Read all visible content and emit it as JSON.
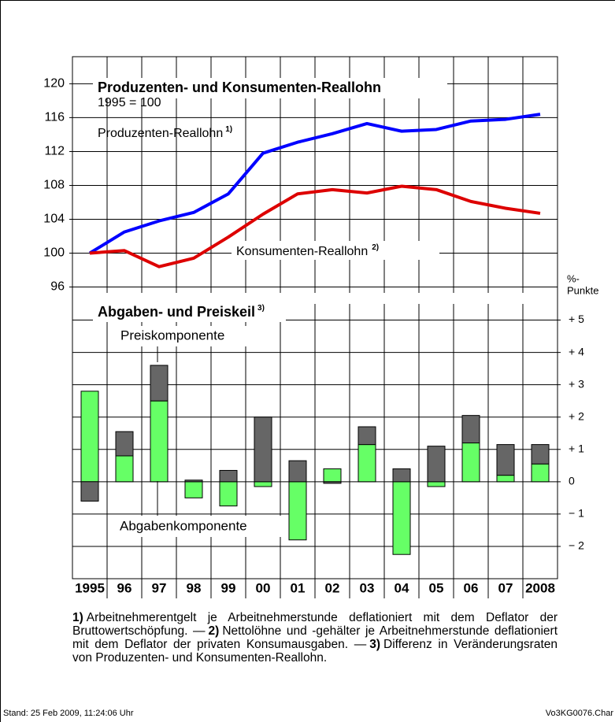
{
  "chart_data": [
    {
      "type": "line",
      "title": "Produzenten- und Konsumenten-Reallohn",
      "subtitle": "1995 = 100",
      "categories": [
        "1995",
        "96",
        "97",
        "98",
        "99",
        "00",
        "01",
        "02",
        "03",
        "04",
        "05",
        "06",
        "07",
        "2008"
      ],
      "series": [
        {
          "name": "Produzenten-Reallohn",
          "note": "1)",
          "color": "#0000ff",
          "values": [
            100,
            102.5,
            103.8,
            104.8,
            107,
            111.8,
            113.1,
            114.1,
            115.3,
            114.4,
            114.6,
            115.6,
            115.8,
            116.4
          ]
        },
        {
          "name": "Konsumenten-Reallohn",
          "note": "2)",
          "color": "#dd0000",
          "values": [
            100,
            100.3,
            98.4,
            99.4,
            101.9,
            104.6,
            107,
            107.5,
            107.1,
            107.9,
            107.5,
            106.1,
            105.3,
            104.7
          ]
        }
      ],
      "ylim": [
        94,
        123.2
      ],
      "yticks": [
        96,
        100,
        104,
        108,
        112,
        116,
        120
      ],
      "grid": true
    },
    {
      "type": "bar",
      "title": "Abgaben- und Preiskeil",
      "title_note": "3)",
      "axis_label": [
        "%-",
        "Punkte"
      ],
      "stacked": true,
      "categories": [
        "1995",
        "96",
        "97",
        "98",
        "99",
        "00",
        "01",
        "02",
        "03",
        "04",
        "05",
        "06",
        "07",
        "2008"
      ],
      "series": [
        {
          "name": "Abgabenkomponente",
          "color": "#66ff66",
          "axis": "y2",
          "values": [
            2.8,
            0.8,
            2.5,
            -0.5,
            -0.75,
            -0.15,
            -1.8,
            0.4,
            1.15,
            -2.25,
            -0.15,
            1.2,
            0.2,
            0.55
          ]
        },
        {
          "name": "Preiskomponente",
          "color": "#666666",
          "axis": "y2",
          "values": [
            -0.6,
            0.75,
            1.1,
            0.05,
            0.35,
            2.0,
            0.65,
            -0.05,
            0.55,
            0.4,
            1.1,
            0.85,
            0.95,
            0.6
          ]
        }
      ],
      "y2lim": [
        -3,
        5.5
      ],
      "y2ticks": [
        {
          "value": 5,
          "label": "+ 5"
        },
        {
          "value": 4,
          "label": "+ 4"
        },
        {
          "value": 3,
          "label": "+ 3"
        },
        {
          "value": 2,
          "label": "+ 2"
        },
        {
          "value": 1,
          "label": "+ 1"
        },
        0,
        {
          "value": -1,
          "label": "− 1"
        },
        {
          "value": -2,
          "label": "− 2"
        }
      ],
      "grid": true
    }
  ],
  "footnotes": [
    {
      "marker": "1)",
      "text": "Arbeitnehmerentgelt je Arbeitnehmerstunde deflationiert mit dem Deflator der Bruttowertschöpfung. —"
    },
    {
      "marker": "2)",
      "text": "Nettolöhne und -gehälter je Arbeitnehmerstunde deflationiert mit dem Deflator der privaten Konsumausgaben. —"
    },
    {
      "marker": "3)",
      "text": "Differenz in Veränderungsraten von Produzenten- und Konsumenten-Reallohn."
    }
  ],
  "footer": {
    "stand": "Stand: 25 Feb 2009, 11:24:06 Uhr",
    "file": "Vo3KG0076.Char"
  }
}
